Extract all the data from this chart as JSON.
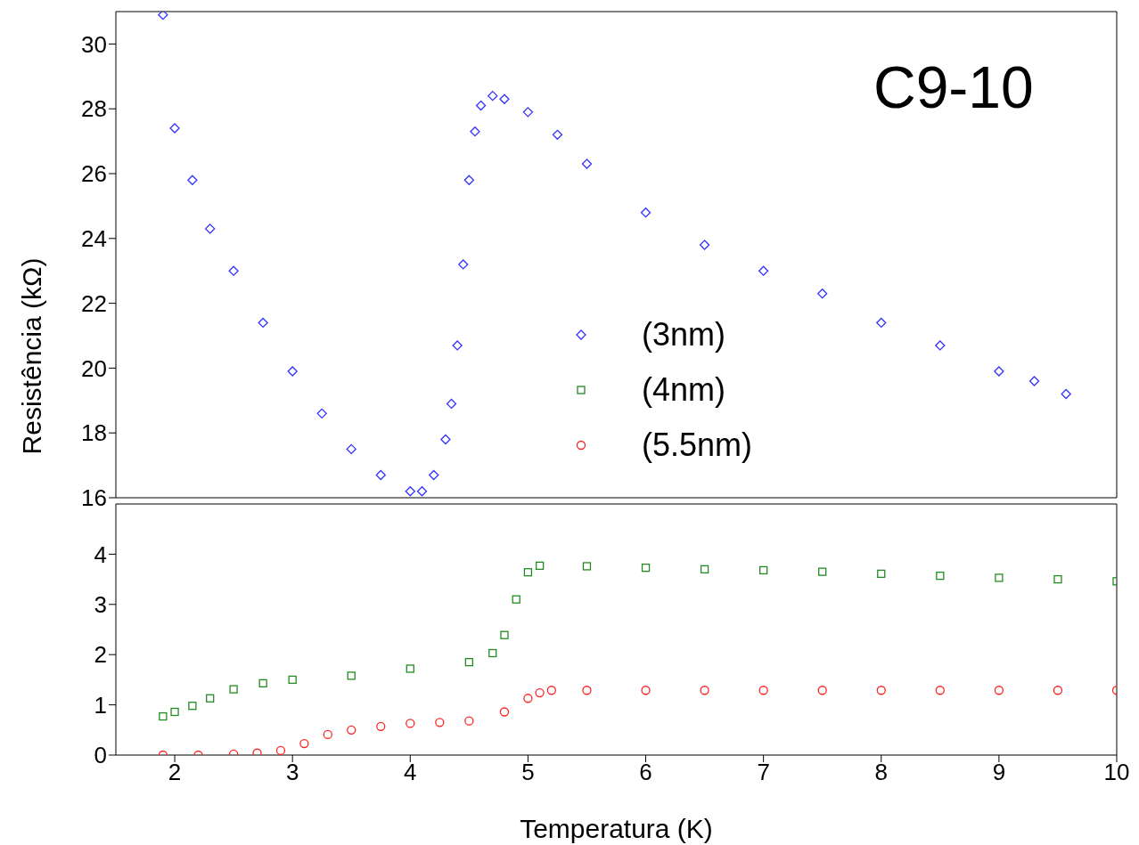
{
  "chart_data": [
    {
      "type": "scatter",
      "title": "C9-10",
      "ylabel": "Resistência (kΩ)",
      "xlim": [
        1.5,
        10
      ],
      "xticks": [
        2,
        3,
        4,
        5,
        6,
        7,
        8,
        9,
        10
      ],
      "ylim": [
        16,
        31
      ],
      "yticks": [
        16,
        18,
        20,
        22,
        24,
        26,
        28,
        30
      ],
      "tick_labels": "y",
      "legend": "right",
      "grid": false,
      "series": [
        {
          "name": "(3nm)",
          "color": "#3333ff",
          "marker": "diamond",
          "x": [
            1.9,
            2.0,
            2.15,
            2.3,
            2.5,
            2.75,
            3.0,
            3.25,
            3.5,
            3.75,
            4.0,
            4.1,
            4.2,
            4.3,
            4.35,
            4.4,
            4.45,
            4.5,
            4.55,
            4.6,
            4.7,
            4.8,
            5.0,
            5.25,
            5.5,
            6.0,
            6.5,
            7.0,
            7.5,
            8.0,
            8.5,
            9.0,
            9.3,
            9.57
          ],
          "values": [
            30.9,
            27.4,
            25.8,
            24.3,
            23.0,
            21.4,
            19.9,
            18.6,
            17.5,
            16.7,
            16.2,
            16.2,
            16.7,
            17.8,
            18.9,
            20.7,
            23.2,
            25.8,
            27.3,
            28.1,
            28.4,
            28.3,
            27.9,
            27.2,
            26.3,
            24.8,
            23.8,
            23.0,
            22.3,
            21.4,
            20.7,
            19.9,
            19.6,
            19.2
          ]
        }
      ]
    },
    {
      "type": "scatter",
      "xlabel": "Temperatura (K)",
      "xlim": [
        1.5,
        10
      ],
      "xticks": [
        2,
        3,
        4,
        5,
        6,
        7,
        8,
        9,
        10
      ],
      "ylim": [
        0,
        5
      ],
      "yticks": [
        0,
        1,
        2,
        3,
        4
      ],
      "grid": false,
      "legend": "right",
      "series": [
        {
          "name": "(4nm)",
          "color": "#228b22",
          "marker": "square",
          "x": [
            1.9,
            2.0,
            2.15,
            2.3,
            2.5,
            2.75,
            3.0,
            3.5,
            4.0,
            4.5,
            4.7,
            4.8,
            4.9,
            5.0,
            5.1,
            5.5,
            6.0,
            6.5,
            7.0,
            7.5,
            8.0,
            8.5,
            9.0,
            9.5,
            10.0
          ],
          "values": [
            0.77,
            0.86,
            0.98,
            1.13,
            1.31,
            1.43,
            1.5,
            1.58,
            1.72,
            1.85,
            2.03,
            2.39,
            3.1,
            3.64,
            3.77,
            3.76,
            3.73,
            3.7,
            3.68,
            3.65,
            3.61,
            3.57,
            3.53,
            3.5,
            3.46
          ]
        },
        {
          "name": "(5.5nm)",
          "color": "#ff2222",
          "marker": "circle",
          "x": [
            1.9,
            2.2,
            2.5,
            2.7,
            2.9,
            3.1,
            3.3,
            3.5,
            3.75,
            4.0,
            4.25,
            4.5,
            4.8,
            5.0,
            5.1,
            5.2,
            5.5,
            6.0,
            6.5,
            7.0,
            7.5,
            8.0,
            8.5,
            9.0,
            9.5,
            10.0
          ],
          "values": [
            0,
            0,
            0.02,
            0.04,
            0.09,
            0.23,
            0.41,
            0.5,
            0.57,
            0.63,
            0.65,
            0.68,
            0.86,
            1.13,
            1.24,
            1.29,
            1.29,
            1.29,
            1.29,
            1.29,
            1.29,
            1.29,
            1.29,
            1.29,
            1.29,
            1.29
          ]
        }
      ]
    }
  ]
}
